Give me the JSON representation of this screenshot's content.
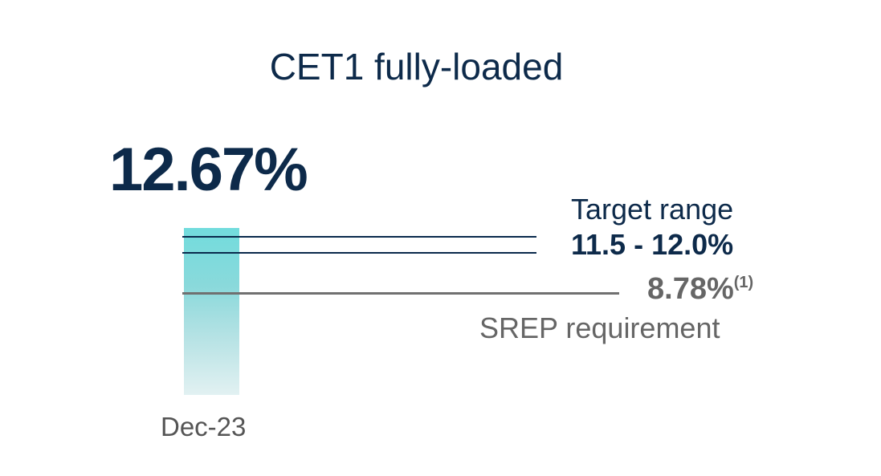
{
  "chart_data": {
    "type": "bar",
    "title": "CET1 fully-loaded",
    "categories": [
      "Dec-23"
    ],
    "values": [
      12.67
    ],
    "value_label": "12.67%",
    "bar_color": "#72dcdd",
    "reference_lines": [
      {
        "label": "Target range",
        "value_label": "11.5 - 12.0%",
        "values": [
          11.5,
          12.0
        ],
        "color": "#0a2a4c"
      },
      {
        "label": "SREP requirement",
        "value_label": "8.78%",
        "footnote": "(1)",
        "value": 8.78,
        "color": "#707070"
      }
    ]
  }
}
